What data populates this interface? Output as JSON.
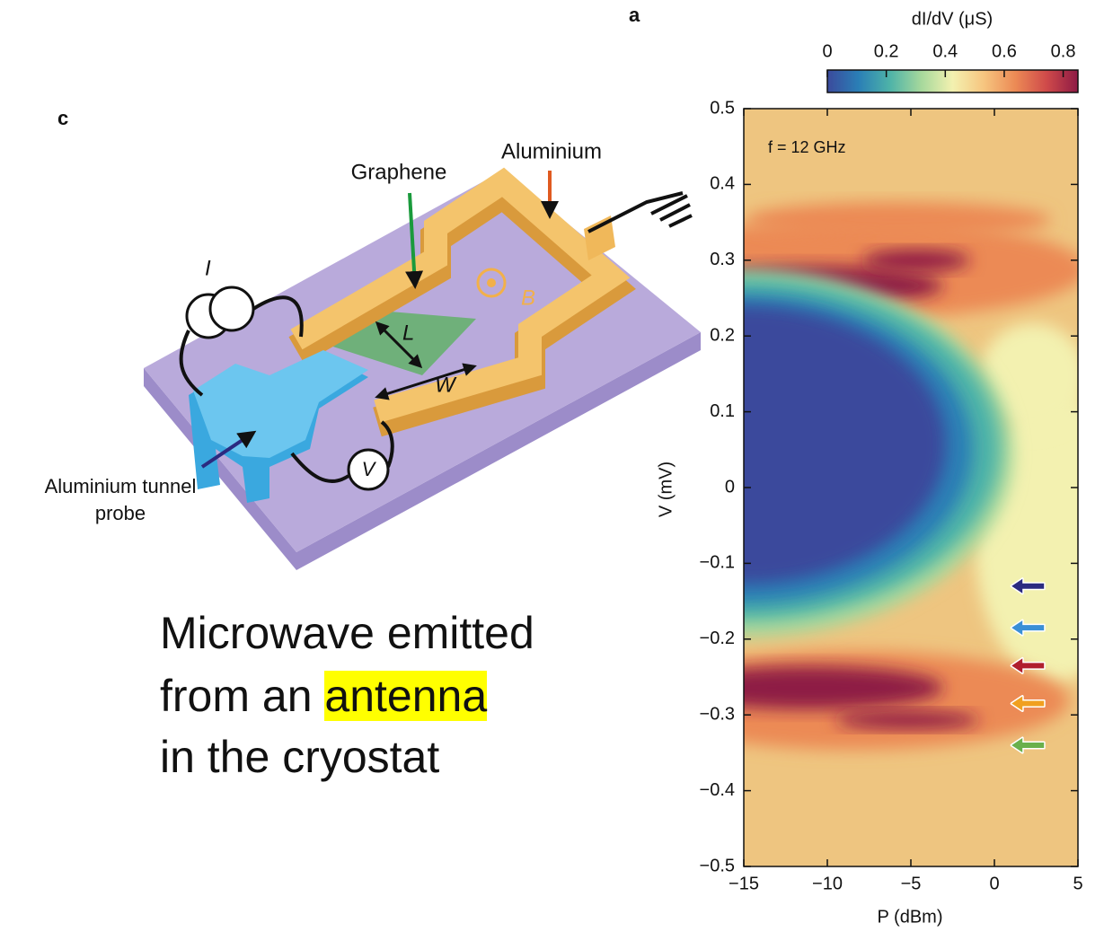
{
  "panel_labels": {
    "a": "a",
    "c": "c"
  },
  "diagram": {
    "graphene": "Graphene",
    "aluminium": "Aluminium",
    "probe_lines": [
      "Aluminium tunnel",
      "probe"
    ],
    "current": "I",
    "length": "L",
    "width": "W",
    "field": "B",
    "voltage": "V"
  },
  "caption": {
    "lines": [
      "Microwave emitted",
      "from an",
      "in the cryostat"
    ],
    "highlight": "antenna"
  },
  "chart_data": {
    "type": "heatmap",
    "annotation": "f = 12 GHz",
    "xlabel": "P (dBm)",
    "ylabel": "V (mV)",
    "xlim": [
      -15,
      5
    ],
    "xticks": [
      {
        "value": -15,
        "label": "−15"
      },
      {
        "value": -10,
        "label": "−10"
      },
      {
        "value": -5,
        "label": "−5"
      },
      0,
      5
    ],
    "ylim": [
      -0.5,
      0.5
    ],
    "yticks": [
      {
        "value": -0.5,
        "label": "−0.5"
      },
      {
        "value": -0.4,
        "label": "−0.4"
      },
      {
        "value": -0.3,
        "label": "−0.3"
      },
      {
        "value": -0.2,
        "label": "−0.2"
      },
      {
        "value": -0.1,
        "label": "−0.1"
      },
      0,
      0.1,
      0.2,
      0.3,
      0.4,
      0.5
    ],
    "colorbar": {
      "label": "dI/dV (μS)",
      "lim": [
        0,
        0.85
      ],
      "ticks": [
        0,
        0.2,
        0.4,
        0.6,
        0.8
      ],
      "colors": [
        "#3b4a9c",
        "#2a7fb6",
        "#4eb3a8",
        "#a6d89c",
        "#f3f1b0",
        "#f6c57f",
        "#ec8a55",
        "#cf4a4a",
        "#8e1a45"
      ]
    },
    "arrows": [
      {
        "color": "#2b2a80",
        "x": 2,
        "y": -0.13
      },
      {
        "color": "#3a8fd6",
        "x": 2,
        "y": -0.185
      },
      {
        "color": "#b01e2e",
        "x": 2,
        "y": -0.235
      },
      {
        "color": "#f0a020",
        "x": 2,
        "y": -0.285
      },
      {
        "color": "#6ab04c",
        "x": 2,
        "y": -0.34
      }
    ]
  }
}
